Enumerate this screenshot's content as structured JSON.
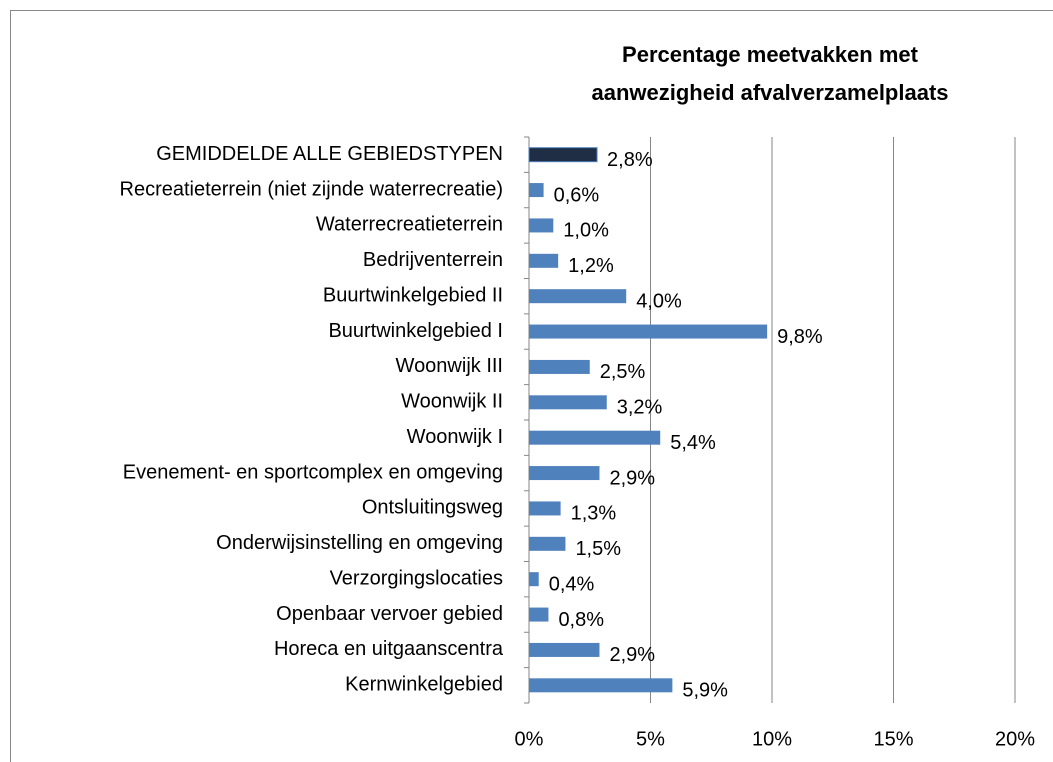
{
  "chart_data": {
    "type": "bar",
    "orientation": "horizontal",
    "title": [
      "Percentage meetvakken met",
      "aanwezigheid afvalverzamelplaats"
    ],
    "categories": [
      "GEMIDDELDE ALLE GEBIEDSTYPEN",
      "Recreatieterrein (niet zijnde waterrecreatie)",
      "Waterrecreatieterrein",
      "Bedrijventerrein",
      "Buurtwinkelgebied II",
      "Buurtwinkelgebied I",
      "Woonwijk III",
      "Woonwijk II",
      "Woonwijk I",
      "Evenement- en sportcomplex en omgeving",
      "Ontsluitingsweg",
      "Onderwijsinstelling en omgeving",
      "Verzorgingslocaties",
      "Openbaar vervoer gebied",
      "Horeca en uitgaanscentra",
      "Kernwinkelgebied"
    ],
    "values": [
      2.8,
      0.6,
      1.0,
      1.2,
      4.0,
      9.8,
      2.5,
      3.2,
      5.4,
      2.9,
      1.3,
      1.5,
      0.4,
      0.8,
      2.9,
      5.9
    ],
    "value_labels": [
      "2,8%",
      "0,6%",
      "1,0%",
      "1,2%",
      "4,0%",
      "9,8%",
      "2,5%",
      "3,2%",
      "5,4%",
      "2,9%",
      "1,3%",
      "1,5%",
      "0,4%",
      "0,8%",
      "2,9%",
      "5,9%"
    ],
    "colors": [
      "#1f2d45",
      "#4f81bd",
      "#4f81bd",
      "#4f81bd",
      "#4f81bd",
      "#4f81bd",
      "#4f81bd",
      "#4f81bd",
      "#4f81bd",
      "#4f81bd",
      "#4f81bd",
      "#4f81bd",
      "#4f81bd",
      "#4f81bd",
      "#4f81bd",
      "#4f81bd"
    ],
    "xlim": [
      0,
      20
    ],
    "xticks": [
      {
        "value": 0,
        "label": "0%"
      },
      {
        "value": 5,
        "label": "5%"
      },
      {
        "value": 10,
        "label": "10%"
      },
      {
        "value": 15,
        "label": "15%"
      },
      {
        "value": 20,
        "label": "20%"
      }
    ],
    "grid": true
  }
}
